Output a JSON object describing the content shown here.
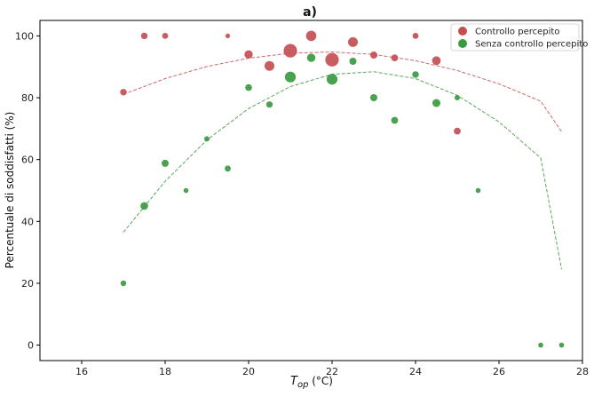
{
  "chart_data": {
    "type": "scatter",
    "title": "a)",
    "xlabel_main": "T",
    "xlabel_sub": "op",
    "xlabel_unit": " (°C)",
    "ylabel": "Percentuale di soddisfatti (%)",
    "xlim": [
      15,
      28
    ],
    "ylim": [
      -5,
      105
    ],
    "xticks": [
      16,
      18,
      20,
      22,
      24,
      26,
      28
    ],
    "yticks": [
      0,
      20,
      40,
      60,
      80,
      100
    ],
    "grid": false,
    "legend_position": "top-right",
    "series": [
      {
        "name": "Controllo percepito",
        "color": "#c44e52",
        "points": [
          {
            "x": 17.0,
            "y": 81.8,
            "w": 1
          },
          {
            "x": 17.5,
            "y": 100,
            "w": 1
          },
          {
            "x": 18.0,
            "y": 100,
            "w": 0.8
          },
          {
            "x": 19.5,
            "y": 100,
            "w": 0.3
          },
          {
            "x": 20.0,
            "y": 94.0,
            "w": 2
          },
          {
            "x": 20.5,
            "y": 90.3,
            "w": 3
          },
          {
            "x": 21.0,
            "y": 95.2,
            "w": 7
          },
          {
            "x": 21.5,
            "y": 100,
            "w": 3.5
          },
          {
            "x": 22.0,
            "y": 92.3,
            "w": 7
          },
          {
            "x": 22.5,
            "y": 98.0,
            "w": 3
          },
          {
            "x": 23.0,
            "y": 93.8,
            "w": 1.3
          },
          {
            "x": 23.5,
            "y": 92.9,
            "w": 1.2
          },
          {
            "x": 24.0,
            "y": 100,
            "w": 0.8
          },
          {
            "x": 24.5,
            "y": 92.0,
            "w": 2.2
          },
          {
            "x": 25.0,
            "y": 69.2,
            "w": 1.2
          }
        ],
        "fit": [
          {
            "x": 17.0,
            "y": 81.1
          },
          {
            "x": 18.0,
            "y": 86.2
          },
          {
            "x": 19.0,
            "y": 90.1
          },
          {
            "x": 20.0,
            "y": 92.8
          },
          {
            "x": 21.0,
            "y": 94.4
          },
          {
            "x": 22.0,
            "y": 94.8
          },
          {
            "x": 23.0,
            "y": 94.0
          },
          {
            "x": 24.0,
            "y": 92.0
          },
          {
            "x": 25.0,
            "y": 88.8
          },
          {
            "x": 26.0,
            "y": 84.5
          },
          {
            "x": 27.0,
            "y": 78.9
          },
          {
            "x": 27.5,
            "y": 69.0
          }
        ]
      },
      {
        "name": "Senza controllo percepito",
        "color": "#3a9a3f",
        "points": [
          {
            "x": 17.0,
            "y": 20.0,
            "w": 0.6
          },
          {
            "x": 17.5,
            "y": 45.0,
            "w": 1.6
          },
          {
            "x": 18.0,
            "y": 58.8,
            "w": 1.3
          },
          {
            "x": 18.5,
            "y": 50.0,
            "w": 0.4
          },
          {
            "x": 19.0,
            "y": 66.7,
            "w": 0.5
          },
          {
            "x": 19.5,
            "y": 57.1,
            "w": 0.8
          },
          {
            "x": 20.0,
            "y": 83.3,
            "w": 1.1
          },
          {
            "x": 20.5,
            "y": 77.8,
            "w": 0.9
          },
          {
            "x": 21.0,
            "y": 86.7,
            "w": 4
          },
          {
            "x": 21.5,
            "y": 92.9,
            "w": 2
          },
          {
            "x": 22.0,
            "y": 86.0,
            "w": 4
          },
          {
            "x": 22.5,
            "y": 91.8,
            "w": 1.3
          },
          {
            "x": 23.0,
            "y": 80.0,
            "w": 1.3
          },
          {
            "x": 23.5,
            "y": 72.7,
            "w": 1.2
          },
          {
            "x": 24.0,
            "y": 87.5,
            "w": 1
          },
          {
            "x": 24.5,
            "y": 78.3,
            "w": 1.8
          },
          {
            "x": 25.0,
            "y": 80.0,
            "w": 0.5
          },
          {
            "x": 25.5,
            "y": 50.0,
            "w": 0.4
          },
          {
            "x": 27.0,
            "y": 0,
            "w": 0.4
          },
          {
            "x": 27.5,
            "y": 0,
            "w": 0.4
          }
        ],
        "fit": [
          {
            "x": 17.0,
            "y": 36.5
          },
          {
            "x": 18.0,
            "y": 53.0
          },
          {
            "x": 19.0,
            "y": 66.3
          },
          {
            "x": 20.0,
            "y": 76.5
          },
          {
            "x": 21.0,
            "y": 83.6
          },
          {
            "x": 22.0,
            "y": 87.6
          },
          {
            "x": 23.0,
            "y": 88.4
          },
          {
            "x": 24.0,
            "y": 86.2
          },
          {
            "x": 25.0,
            "y": 80.8
          },
          {
            "x": 26.0,
            "y": 72.2
          },
          {
            "x": 27.0,
            "y": 60.5
          },
          {
            "x": 27.5,
            "y": 24.5
          }
        ]
      }
    ]
  }
}
